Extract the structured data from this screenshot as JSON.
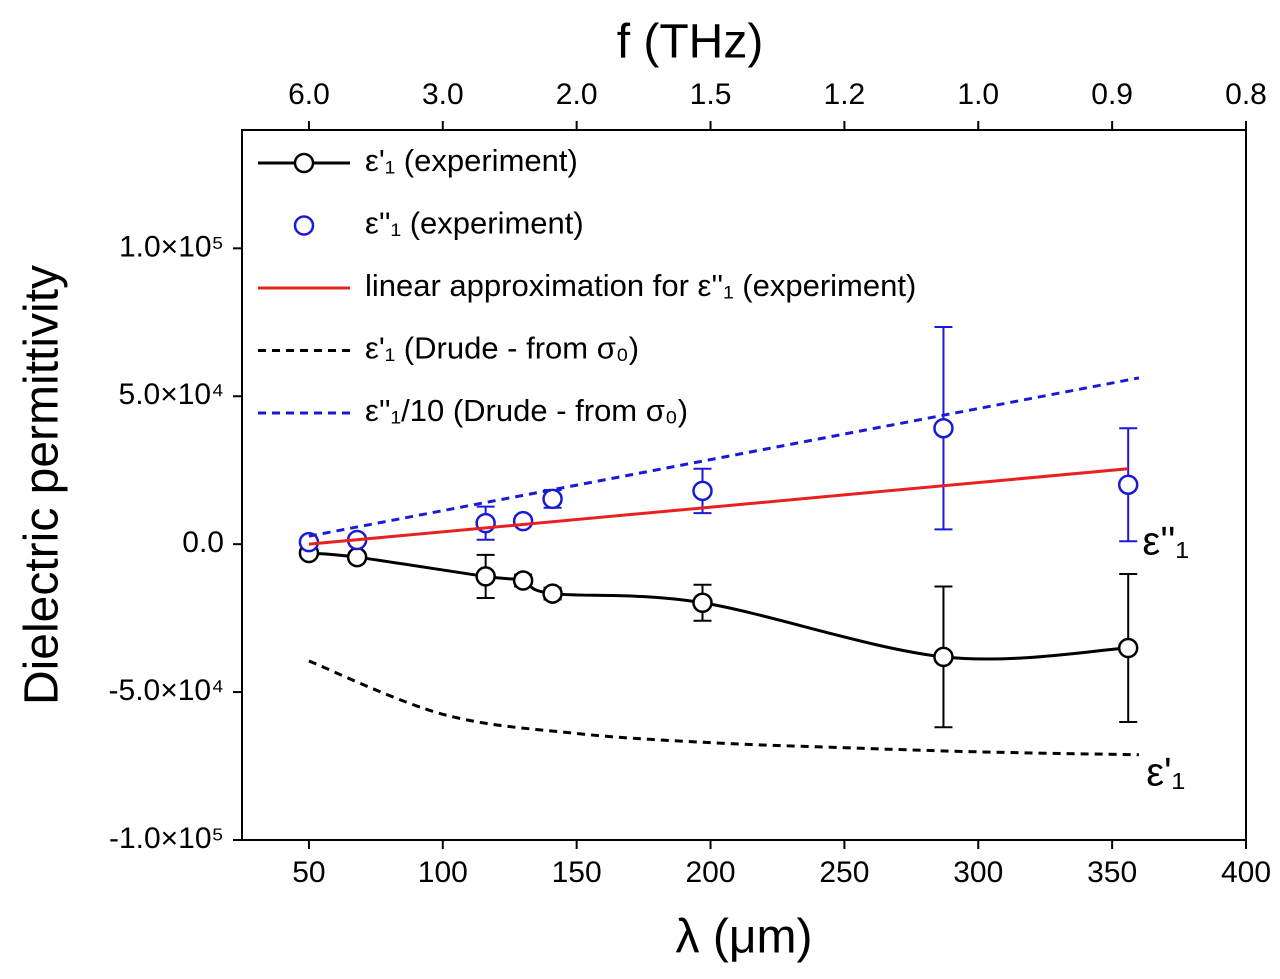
{
  "chart_data": {
    "type": "line",
    "x_label": "λ (μm)",
    "y_label": "Dielectric permittivity",
    "x2_label": "f (THz)",
    "xlim": [
      25,
      400
    ],
    "ylim": [
      -100000,
      140000
    ],
    "xticks": [
      50,
      100,
      150,
      200,
      250,
      300,
      350,
      400
    ],
    "x2ticks": [
      {
        "value": 50,
        "label": "6.0"
      },
      {
        "value": 100,
        "label": "3.0"
      },
      {
        "value": 150,
        "label": "2.0"
      },
      {
        "value": 200,
        "label": "1.5"
      },
      {
        "value": 250,
        "label": "1.2"
      },
      {
        "value": 300,
        "label": "1.0"
      },
      {
        "value": 350,
        "label": "0.9"
      },
      {
        "value": 400,
        "label": "0.8"
      }
    ],
    "yticks": [
      {
        "value": -100000,
        "label": "-1.0×10⁵"
      },
      {
        "value": -50000,
        "label": "-5.0×10⁴"
      },
      {
        "value": 0,
        "label": "0.0"
      },
      {
        "value": 50000,
        "label": "5.0×10⁴"
      },
      {
        "value": 100000,
        "label": "1.0×10⁵"
      }
    ],
    "legend": "upper left",
    "series": [
      {
        "name": "ε'₁ (experiment)",
        "color": "#000000",
        "line": "solid",
        "marker": "circle",
        "smooth": true,
        "x": [
          50,
          68,
          116,
          130,
          141,
          197,
          287,
          356
        ],
        "values": [
          -3000,
          -4400,
          -10900,
          -12300,
          -16700,
          -19800,
          -38100,
          -35100
        ],
        "errors": [
          1000,
          1000,
          7300,
          2000,
          2000,
          6100,
          23800,
          25000
        ]
      },
      {
        "name": "ε''₁ (experiment)",
        "color": "#1a1ad6",
        "line": "none",
        "marker": "circle",
        "x": [
          50,
          68,
          116,
          130,
          141,
          197,
          287,
          356
        ],
        "values": [
          700,
          1400,
          7100,
          7800,
          15300,
          18000,
          39200,
          20100
        ],
        "errors": [
          500,
          500,
          5600,
          1500,
          3000,
          7500,
          34200,
          19100
        ]
      },
      {
        "name": "linear approximation for ε''₁ (experiment)",
        "color": "#e82020",
        "line": "solid",
        "x": [
          50,
          356
        ],
        "values": [
          0,
          25500
        ]
      },
      {
        "name": "ε'₁ (Drude - from σ₀)",
        "color": "#000000",
        "line": "dashed",
        "smooth": true,
        "x": [
          50,
          100,
          150,
          200,
          250,
          300,
          360
        ],
        "values": [
          -39500,
          -57500,
          -64000,
          -67100,
          -68800,
          -70200,
          -71200
        ]
      },
      {
        "name": "ε''₁/10 (Drude - from σ₀)",
        "color": "#1a1ad6",
        "line": "dashed",
        "x": [
          50,
          360
        ],
        "values": [
          2700,
          56200
        ]
      }
    ],
    "annotations": [
      {
        "text": "ε''₁",
        "x": 370,
        "y": 0,
        "color": "#1a1ad6"
      },
      {
        "text": "ε'₁",
        "x": 370,
        "y": -78000,
        "color": "#000000"
      }
    ]
  }
}
